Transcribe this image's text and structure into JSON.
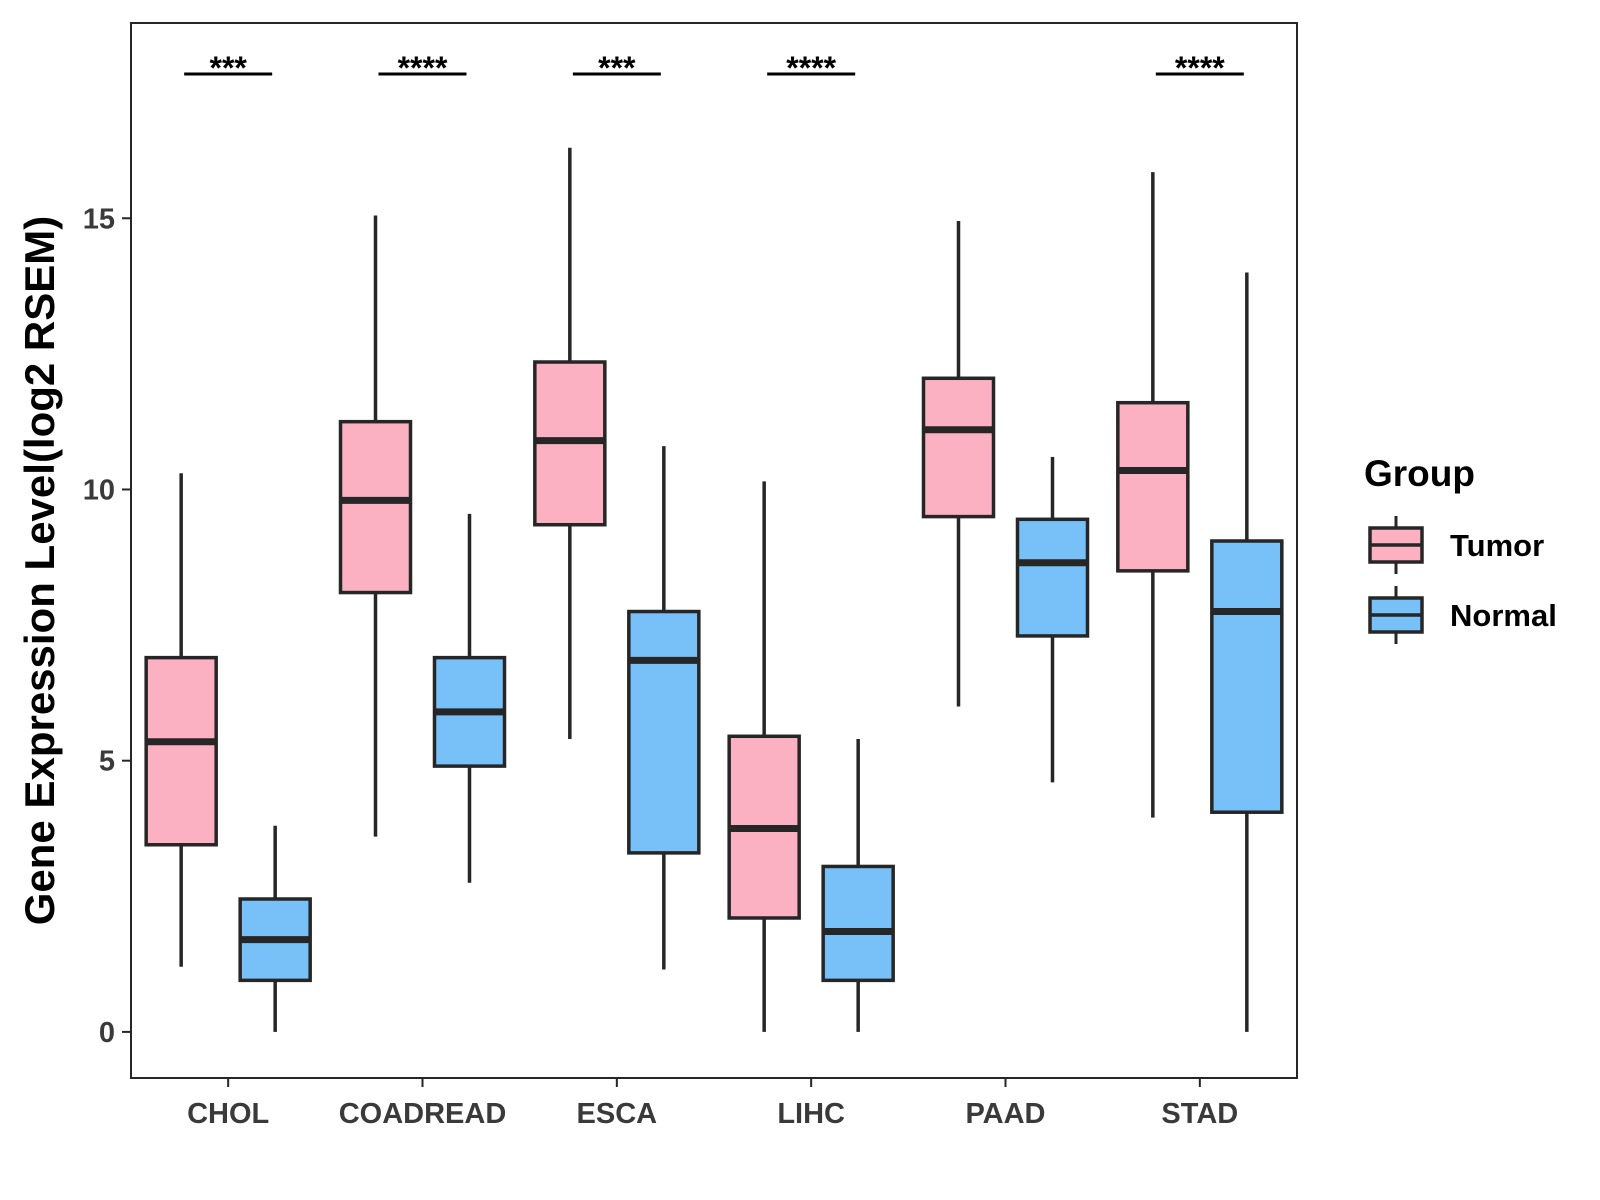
{
  "chart_data": {
    "type": "boxplot",
    "title": "",
    "xlabel": "",
    "ylabel": "Gene Expression Level(log2 RSEM)",
    "ylim": [
      -0.85,
      18.6
    ],
    "yticks": [
      0,
      5,
      10,
      15
    ],
    "categories": [
      "CHOL",
      "COADREAD",
      "ESCA",
      "LIHC",
      "PAAD",
      "STAD"
    ],
    "legend": {
      "title": "Group",
      "position": "right"
    },
    "series": [
      {
        "name": "Tumor",
        "color": "#FBB1C1",
        "boxes": [
          {
            "min": 1.2,
            "q1": 3.45,
            "median": 5.35,
            "q3": 6.9,
            "max": 10.3
          },
          {
            "min": 3.6,
            "q1": 8.1,
            "median": 9.8,
            "q3": 11.25,
            "max": 15.05
          },
          {
            "min": 5.4,
            "q1": 9.35,
            "median": 10.9,
            "q3": 12.35,
            "max": 16.3
          },
          {
            "min": 0.0,
            "q1": 2.1,
            "median": 3.75,
            "q3": 5.45,
            "max": 10.15
          },
          {
            "min": 6.0,
            "q1": 9.5,
            "median": 11.1,
            "q3": 12.05,
            "max": 14.95
          },
          {
            "min": 3.95,
            "q1": 8.5,
            "median": 10.35,
            "q3": 11.6,
            "max": 15.85
          }
        ]
      },
      {
        "name": "Normal",
        "color": "#78C1F8",
        "boxes": [
          {
            "min": 0.0,
            "q1": 0.95,
            "median": 1.7,
            "q3": 2.45,
            "max": 3.8
          },
          {
            "min": 2.75,
            "q1": 4.9,
            "median": 5.9,
            "q3": 6.9,
            "max": 9.55
          },
          {
            "min": 1.15,
            "q1": 3.3,
            "median": 6.85,
            "q3": 7.75,
            "max": 10.8
          },
          {
            "min": 0.0,
            "q1": 0.95,
            "median": 1.85,
            "q3": 3.05,
            "max": 5.4
          },
          {
            "min": 4.6,
            "q1": 7.3,
            "median": 8.65,
            "q3": 9.45,
            "max": 10.6
          },
          {
            "min": 0.0,
            "q1": 4.05,
            "median": 7.75,
            "q3": 9.05,
            "max": 14.0
          }
        ]
      }
    ],
    "significance": [
      "***",
      "****",
      "***",
      "****",
      "",
      "****"
    ],
    "colors": {
      "outline": "#262626",
      "frame": "#262626",
      "background": "#ffffff"
    }
  }
}
